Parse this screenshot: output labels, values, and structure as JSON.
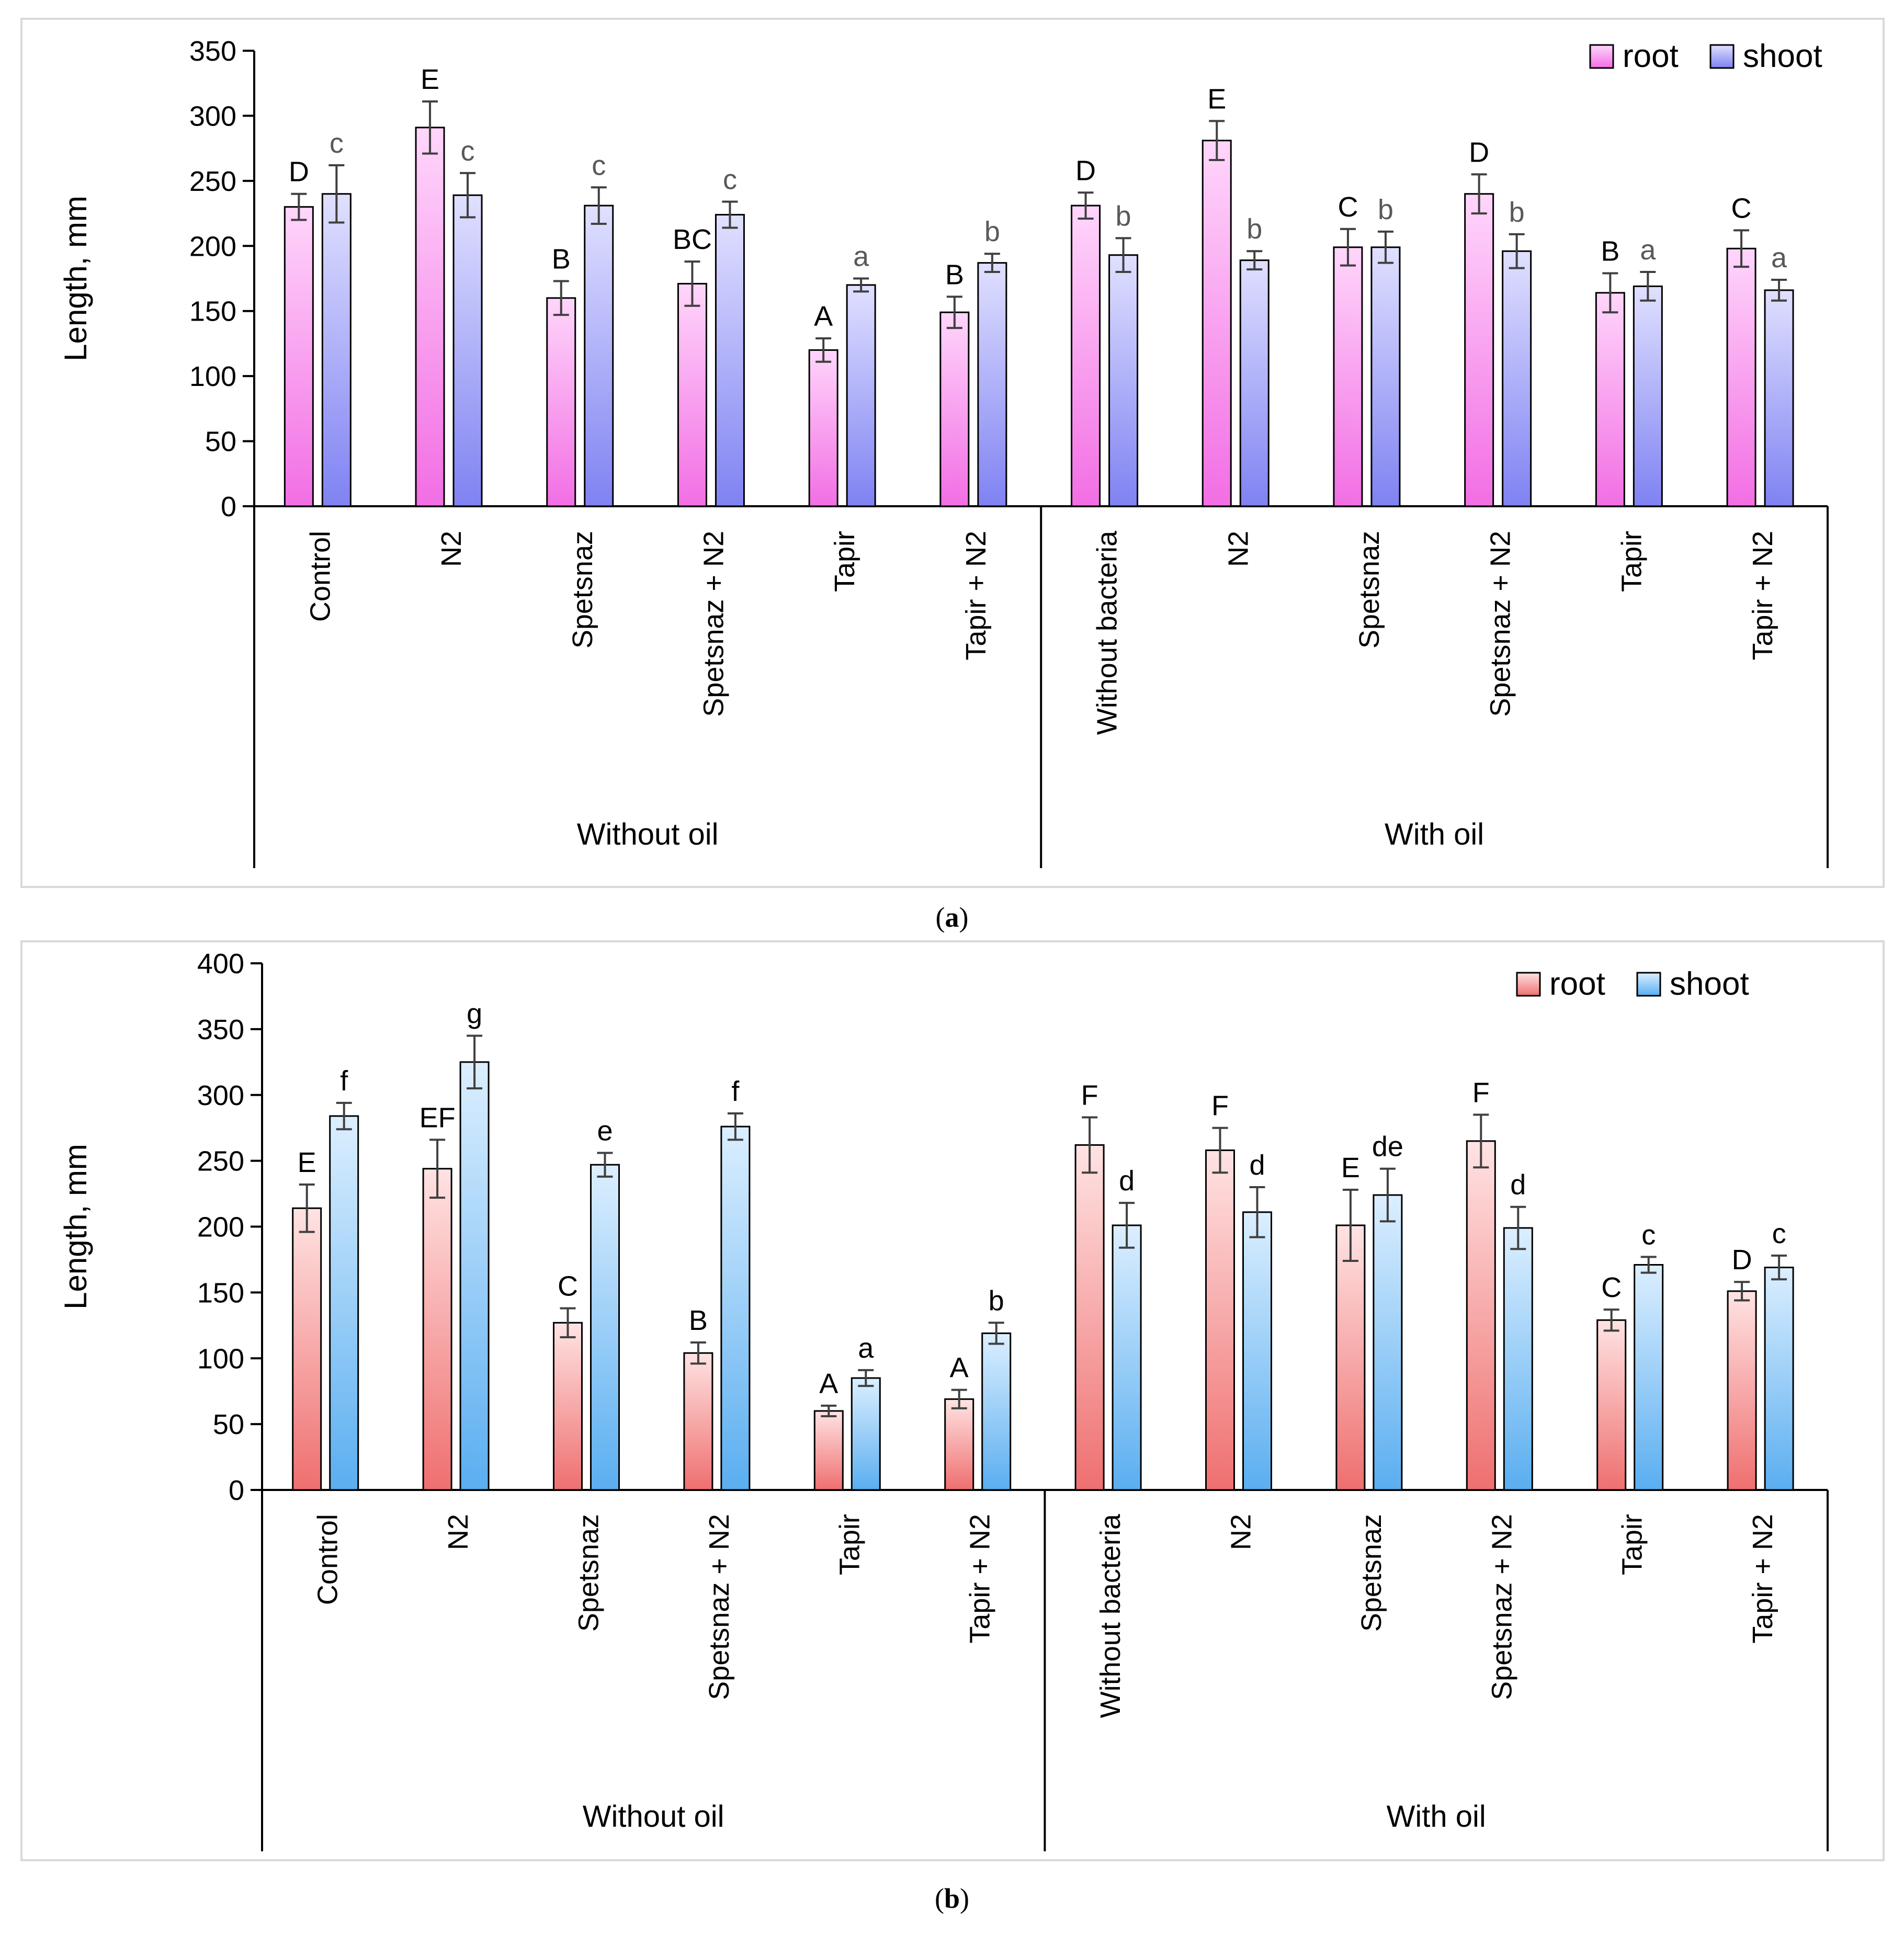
{
  "colors": {
    "root_a_top": "#ffd6fb",
    "root_a_bottom": "#f26ee4",
    "shoot_a_top": "#e0e0ff",
    "shoot_a_bottom": "#7f82f2",
    "root_b_top": "#ffe3e3",
    "root_b_bottom": "#ef6f6f",
    "shoot_b_top": "#dcefff",
    "shoot_b_bottom": "#5aaef0",
    "axis": "#000000",
    "error_bar": "#404040",
    "letter_shoot_a": "#595959",
    "frame": "#d9d9d9"
  },
  "chart_data": [
    {
      "panel": "a",
      "caption_label": "a",
      "type": "bar",
      "ylabel": "Length, mm",
      "ylim": [
        0,
        350
      ],
      "yticks": [
        0,
        50,
        100,
        150,
        200,
        250,
        300,
        350
      ],
      "ytick_labels": [
        "0",
        "50",
        "100",
        "150",
        "200",
        "250",
        "300",
        "350"
      ],
      "legend_position": "top-right",
      "groups": [
        {
          "label": "Without oil",
          "count": 6
        },
        {
          "label": "With oil",
          "count": 6
        }
      ],
      "categories": [
        "Control",
        "N2",
        "Spetsnaz",
        "Spetsnaz + N2",
        "Tapir",
        "Tapir + N2",
        "Without bacteria",
        "N2",
        "Spetsnaz",
        "Spetsnaz + N2",
        "Tapir",
        "Tapir + N2"
      ],
      "series": [
        {
          "name": "root",
          "values": [
            230,
            291,
            160,
            171,
            120,
            149,
            231,
            281,
            199,
            240,
            164,
            198
          ],
          "errors": [
            10,
            20,
            13,
            17,
            9,
            12,
            10,
            15,
            14,
            15,
            15,
            14
          ],
          "letters": [
            "D",
            "E",
            "B",
            "BC",
            "A",
            "B",
            "D",
            "E",
            "C",
            "D",
            "B",
            "C"
          ]
        },
        {
          "name": "shoot",
          "values": [
            240,
            239,
            231,
            224,
            170,
            187,
            193,
            189,
            199,
            196,
            169,
            166
          ],
          "errors": [
            22,
            17,
            14,
            10,
            5,
            7,
            13,
            7,
            12,
            13,
            11,
            8
          ],
          "letters": [
            "c",
            "c",
            "c",
            "c",
            "a",
            "b",
            "b",
            "b",
            "b",
            "b",
            "a",
            "a"
          ]
        }
      ]
    },
    {
      "panel": "b",
      "caption_label": "b",
      "type": "bar",
      "ylabel": "Length, mm",
      "ylim": [
        0,
        400
      ],
      "yticks": [
        0,
        50,
        100,
        150,
        200,
        250,
        300,
        350,
        400
      ],
      "ytick_labels": [
        "0",
        "50",
        "100",
        "150",
        "200",
        "250",
        "300",
        "350",
        "400"
      ],
      "legend_position": "top-right",
      "groups": [
        {
          "label": "Without oil",
          "count": 6
        },
        {
          "label": "With oil",
          "count": 6
        }
      ],
      "categories": [
        "Control",
        "N2",
        "Spetsnaz",
        "Spetsnaz + N2",
        "Tapir",
        "Tapir + N2",
        "Without bacteria",
        "N2",
        "Spetsnaz",
        "Spetsnaz + N2",
        "Tapir",
        "Tapir + N2"
      ],
      "series": [
        {
          "name": "root",
          "values": [
            214,
            244,
            127,
            104,
            60,
            69,
            262,
            258,
            201,
            265,
            129,
            151
          ],
          "errors": [
            18,
            22,
            11,
            8,
            4,
            7,
            21,
            17,
            27,
            20,
            8,
            7
          ],
          "letters": [
            "E",
            "EF",
            "C",
            "B",
            "A",
            "A",
            "F",
            "F",
            "E",
            "F",
            "C",
            "D"
          ]
        },
        {
          "name": "shoot",
          "values": [
            284,
            325,
            247,
            276,
            85,
            119,
            201,
            211,
            224,
            199,
            171,
            169
          ],
          "errors": [
            10,
            20,
            9,
            10,
            6,
            8,
            17,
            19,
            20,
            16,
            6,
            9
          ],
          "letters": [
            "f",
            "g",
            "e",
            "f",
            "a",
            "b",
            "d",
            "d",
            "de",
            "d",
            "c",
            "c"
          ]
        }
      ]
    }
  ]
}
